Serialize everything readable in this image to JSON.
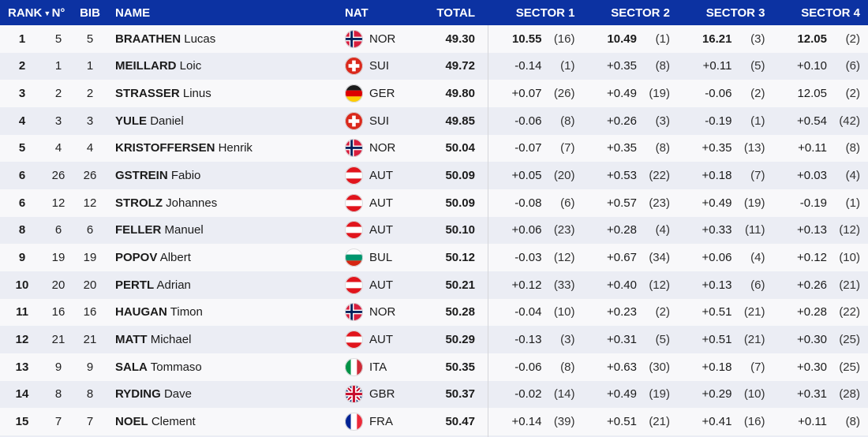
{
  "table": {
    "headers": {
      "rank": "RANK",
      "sort_indicator": "▼",
      "no": "N°",
      "bib": "BIB",
      "name": "NAME",
      "nat": "NAT",
      "total": "TOTAL",
      "sectors": [
        "SECTOR 1",
        "SECTOR 2",
        "SECTOR 3",
        "SECTOR 4"
      ]
    },
    "rows": [
      {
        "rank": "1",
        "no": "5",
        "bib": "5",
        "last": "BRAATHEN",
        "first": "Lucas",
        "nat": "NOR",
        "total": "49.30",
        "leader": true,
        "sectors": [
          {
            "v": "10.55",
            "r": "(16)"
          },
          {
            "v": "10.49",
            "r": "(1)"
          },
          {
            "v": "16.21",
            "r": "(3)"
          },
          {
            "v": "12.05",
            "r": "(2)"
          }
        ]
      },
      {
        "rank": "2",
        "no": "1",
        "bib": "1",
        "last": "MEILLARD",
        "first": "Loic",
        "nat": "SUI",
        "total": "49.72",
        "leader": false,
        "sectors": [
          {
            "v": "-0.14",
            "r": "(1)"
          },
          {
            "v": "+0.35",
            "r": "(8)"
          },
          {
            "v": "+0.11",
            "r": "(5)"
          },
          {
            "v": "+0.10",
            "r": "(6)"
          }
        ]
      },
      {
        "rank": "3",
        "no": "2",
        "bib": "2",
        "last": "STRASSER",
        "first": "Linus",
        "nat": "GER",
        "total": "49.80",
        "leader": false,
        "sectors": [
          {
            "v": "+0.07",
            "r": "(26)"
          },
          {
            "v": "+0.49",
            "r": "(19)"
          },
          {
            "v": "-0.06",
            "r": "(2)"
          },
          {
            "v": "12.05",
            "r": "(2)"
          }
        ]
      },
      {
        "rank": "4",
        "no": "3",
        "bib": "3",
        "last": "YULE",
        "first": "Daniel",
        "nat": "SUI",
        "total": "49.85",
        "leader": false,
        "sectors": [
          {
            "v": "-0.06",
            "r": "(8)"
          },
          {
            "v": "+0.26",
            "r": "(3)"
          },
          {
            "v": "-0.19",
            "r": "(1)"
          },
          {
            "v": "+0.54",
            "r": "(42)"
          }
        ]
      },
      {
        "rank": "5",
        "no": "4",
        "bib": "4",
        "last": "KRISTOFFERSEN",
        "first": "Henrik",
        "nat": "NOR",
        "total": "50.04",
        "leader": false,
        "sectors": [
          {
            "v": "-0.07",
            "r": "(7)"
          },
          {
            "v": "+0.35",
            "r": "(8)"
          },
          {
            "v": "+0.35",
            "r": "(13)"
          },
          {
            "v": "+0.11",
            "r": "(8)"
          }
        ]
      },
      {
        "rank": "6",
        "no": "26",
        "bib": "26",
        "last": "GSTREIN",
        "first": "Fabio",
        "nat": "AUT",
        "total": "50.09",
        "leader": false,
        "sectors": [
          {
            "v": "+0.05",
            "r": "(20)"
          },
          {
            "v": "+0.53",
            "r": "(22)"
          },
          {
            "v": "+0.18",
            "r": "(7)"
          },
          {
            "v": "+0.03",
            "r": "(4)"
          }
        ]
      },
      {
        "rank": "6",
        "no": "12",
        "bib": "12",
        "last": "STROLZ",
        "first": "Johannes",
        "nat": "AUT",
        "total": "50.09",
        "leader": false,
        "sectors": [
          {
            "v": "-0.08",
            "r": "(6)"
          },
          {
            "v": "+0.57",
            "r": "(23)"
          },
          {
            "v": "+0.49",
            "r": "(19)"
          },
          {
            "v": "-0.19",
            "r": "(1)"
          }
        ]
      },
      {
        "rank": "8",
        "no": "6",
        "bib": "6",
        "last": "FELLER",
        "first": "Manuel",
        "nat": "AUT",
        "total": "50.10",
        "leader": false,
        "sectors": [
          {
            "v": "+0.06",
            "r": "(23)"
          },
          {
            "v": "+0.28",
            "r": "(4)"
          },
          {
            "v": "+0.33",
            "r": "(11)"
          },
          {
            "v": "+0.13",
            "r": "(12)"
          }
        ]
      },
      {
        "rank": "9",
        "no": "19",
        "bib": "19",
        "last": "POPOV",
        "first": "Albert",
        "nat": "BUL",
        "total": "50.12",
        "leader": false,
        "sectors": [
          {
            "v": "-0.03",
            "r": "(12)"
          },
          {
            "v": "+0.67",
            "r": "(34)"
          },
          {
            "v": "+0.06",
            "r": "(4)"
          },
          {
            "v": "+0.12",
            "r": "(10)"
          }
        ]
      },
      {
        "rank": "10",
        "no": "20",
        "bib": "20",
        "last": "PERTL",
        "first": "Adrian",
        "nat": "AUT",
        "total": "50.21",
        "leader": false,
        "sectors": [
          {
            "v": "+0.12",
            "r": "(33)"
          },
          {
            "v": "+0.40",
            "r": "(12)"
          },
          {
            "v": "+0.13",
            "r": "(6)"
          },
          {
            "v": "+0.26",
            "r": "(21)"
          }
        ]
      },
      {
        "rank": "11",
        "no": "16",
        "bib": "16",
        "last": "HAUGAN",
        "first": "Timon",
        "nat": "NOR",
        "total": "50.28",
        "leader": false,
        "sectors": [
          {
            "v": "-0.04",
            "r": "(10)"
          },
          {
            "v": "+0.23",
            "r": "(2)"
          },
          {
            "v": "+0.51",
            "r": "(21)"
          },
          {
            "v": "+0.28",
            "r": "(22)"
          }
        ]
      },
      {
        "rank": "12",
        "no": "21",
        "bib": "21",
        "last": "MATT",
        "first": "Michael",
        "nat": "AUT",
        "total": "50.29",
        "leader": false,
        "sectors": [
          {
            "v": "-0.13",
            "r": "(3)"
          },
          {
            "v": "+0.31",
            "r": "(5)"
          },
          {
            "v": "+0.51",
            "r": "(21)"
          },
          {
            "v": "+0.30",
            "r": "(25)"
          }
        ]
      },
      {
        "rank": "13",
        "no": "9",
        "bib": "9",
        "last": "SALA",
        "first": "Tommaso",
        "nat": "ITA",
        "total": "50.35",
        "leader": false,
        "sectors": [
          {
            "v": "-0.06",
            "r": "(8)"
          },
          {
            "v": "+0.63",
            "r": "(30)"
          },
          {
            "v": "+0.18",
            "r": "(7)"
          },
          {
            "v": "+0.30",
            "r": "(25)"
          }
        ]
      },
      {
        "rank": "14",
        "no": "8",
        "bib": "8",
        "last": "RYDING",
        "first": "Dave",
        "nat": "GBR",
        "total": "50.37",
        "leader": false,
        "sectors": [
          {
            "v": "-0.02",
            "r": "(14)"
          },
          {
            "v": "+0.49",
            "r": "(19)"
          },
          {
            "v": "+0.29",
            "r": "(10)"
          },
          {
            "v": "+0.31",
            "r": "(28)"
          }
        ]
      },
      {
        "rank": "15",
        "no": "7",
        "bib": "7",
        "last": "NOEL",
        "first": "Clement",
        "nat": "FRA",
        "total": "50.47",
        "leader": false,
        "sectors": [
          {
            "v": "+0.14",
            "r": "(39)"
          },
          {
            "v": "+0.51",
            "r": "(21)"
          },
          {
            "v": "+0.41",
            "r": "(16)"
          },
          {
            "v": "+0.11",
            "r": "(8)"
          }
        ]
      }
    ]
  },
  "colors": {
    "header_bg": "#0c32a2",
    "header_text": "#ffffff",
    "row_odd": "#f8f8fa",
    "row_even": "#ebedf4",
    "divider": "#d5d6da",
    "text": "#1b1b1b"
  },
  "flags": {
    "NOR": {
      "type": "nordic",
      "bg": "#d81e3e",
      "cross": "#00205b",
      "fimbriation": "#ffffff"
    },
    "SUI": {
      "type": "swiss",
      "bg": "#da291c",
      "cross": "#ffffff"
    },
    "GER": {
      "type": "h3",
      "stripes": [
        "#1a1a1a",
        "#dd0000",
        "#ffcc00"
      ]
    },
    "AUT": {
      "type": "h3",
      "stripes": [
        "#e1141c",
        "#ffffff",
        "#e1141c"
      ]
    },
    "BUL": {
      "type": "h3",
      "stripes": [
        "#ffffff",
        "#00966e",
        "#d62612"
      ]
    },
    "ITA": {
      "type": "v3",
      "stripes": [
        "#009246",
        "#ffffff",
        "#ce2b37"
      ]
    },
    "GBR": {
      "type": "union",
      "bg": "#012169",
      "cross": "#c8102e",
      "white": "#ffffff"
    },
    "FRA": {
      "type": "v3",
      "stripes": [
        "#002395",
        "#ffffff",
        "#ed2939"
      ]
    }
  }
}
